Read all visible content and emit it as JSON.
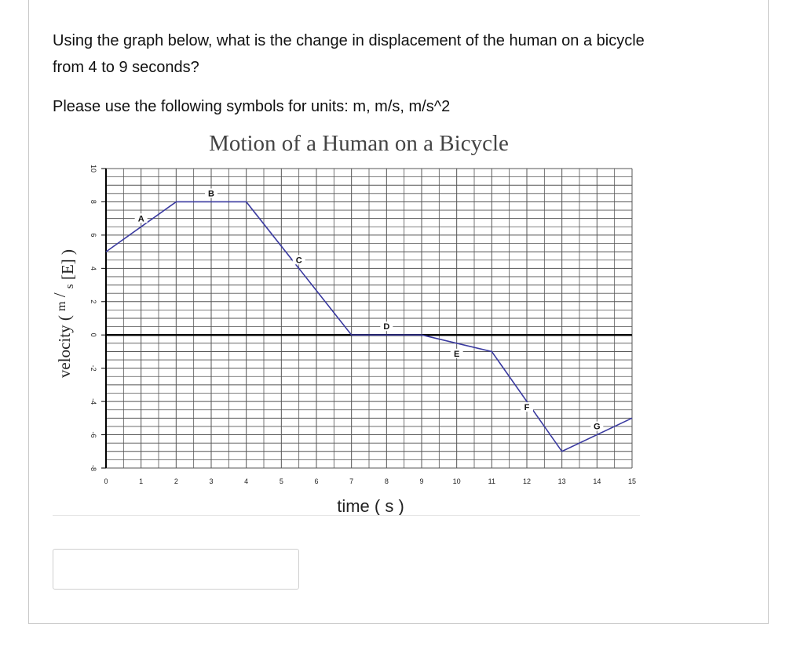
{
  "question": {
    "line1": "Using the graph below, what is the change in displacement of the human on a bicycle",
    "line2": "from 4 to 9 seconds?",
    "units_note": "Please use the following symbols for units: m, m/s, m/s^2"
  },
  "answer_input": {
    "value": "",
    "placeholder": ""
  },
  "colors": {
    "line": "#3a3aa0",
    "grid": "#555555",
    "axis": "#000000"
  },
  "chart_data": {
    "type": "line",
    "title": "Motion of a Human on a Bicycle",
    "xlabel_text": "time",
    "xlabel_unit": "s",
    "ylabel_text": "velocity",
    "ylabel_unit_m": "m",
    "ylabel_unit_s": "s",
    "ylabel_dir": "[E]",
    "xlim": [
      0,
      15
    ],
    "ylim": [
      -8,
      10
    ],
    "x_ticks": [
      "0",
      "1",
      "2",
      "3",
      "4",
      "5",
      "6",
      "7",
      "8",
      "9",
      "10",
      "11",
      "12",
      "13",
      "14",
      "15"
    ],
    "y_ticks": [
      "10",
      "8",
      "6",
      "4",
      "2",
      "0",
      "-2",
      "-4",
      "-6",
      "-8"
    ],
    "grid": true,
    "points": [
      {
        "x": 0,
        "y": 5
      },
      {
        "x": 2,
        "y": 8
      },
      {
        "x": 4,
        "y": 8
      },
      {
        "x": 7,
        "y": 0
      },
      {
        "x": 9,
        "y": 0
      },
      {
        "x": 11,
        "y": -1
      },
      {
        "x": 13,
        "y": -7
      },
      {
        "x": 15,
        "y": -5
      }
    ],
    "segment_labels": [
      "A",
      "B",
      "C",
      "D",
      "E",
      "F",
      "G"
    ]
  }
}
